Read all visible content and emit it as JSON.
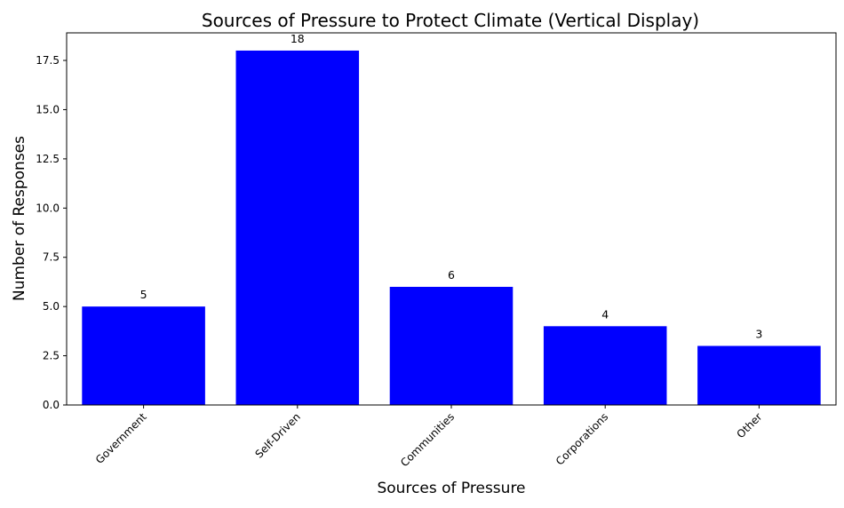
{
  "chart_data": {
    "type": "bar",
    "title": "Sources of Pressure to Protect Climate (Vertical Display)",
    "xlabel": "Sources of Pressure",
    "ylabel": "Number of Responses",
    "categories": [
      "Government",
      "Self-Driven",
      "Communities",
      "Corporations",
      "Other"
    ],
    "values": [
      5,
      18,
      6,
      4,
      3
    ],
    "data_labels": [
      "5",
      "18",
      "6",
      "4",
      "3"
    ],
    "ylim": [
      0,
      18.9
    ],
    "yticks": [
      0.0,
      2.5,
      5.0,
      7.5,
      10.0,
      12.5,
      15.0,
      17.5
    ],
    "ytick_labels": [
      "0.0",
      "2.5",
      "5.0",
      "7.5",
      "10.0",
      "12.5",
      "15.0",
      "17.5"
    ],
    "bar_color": "#0000ff",
    "grid": false,
    "xtick_rotation": "45"
  }
}
